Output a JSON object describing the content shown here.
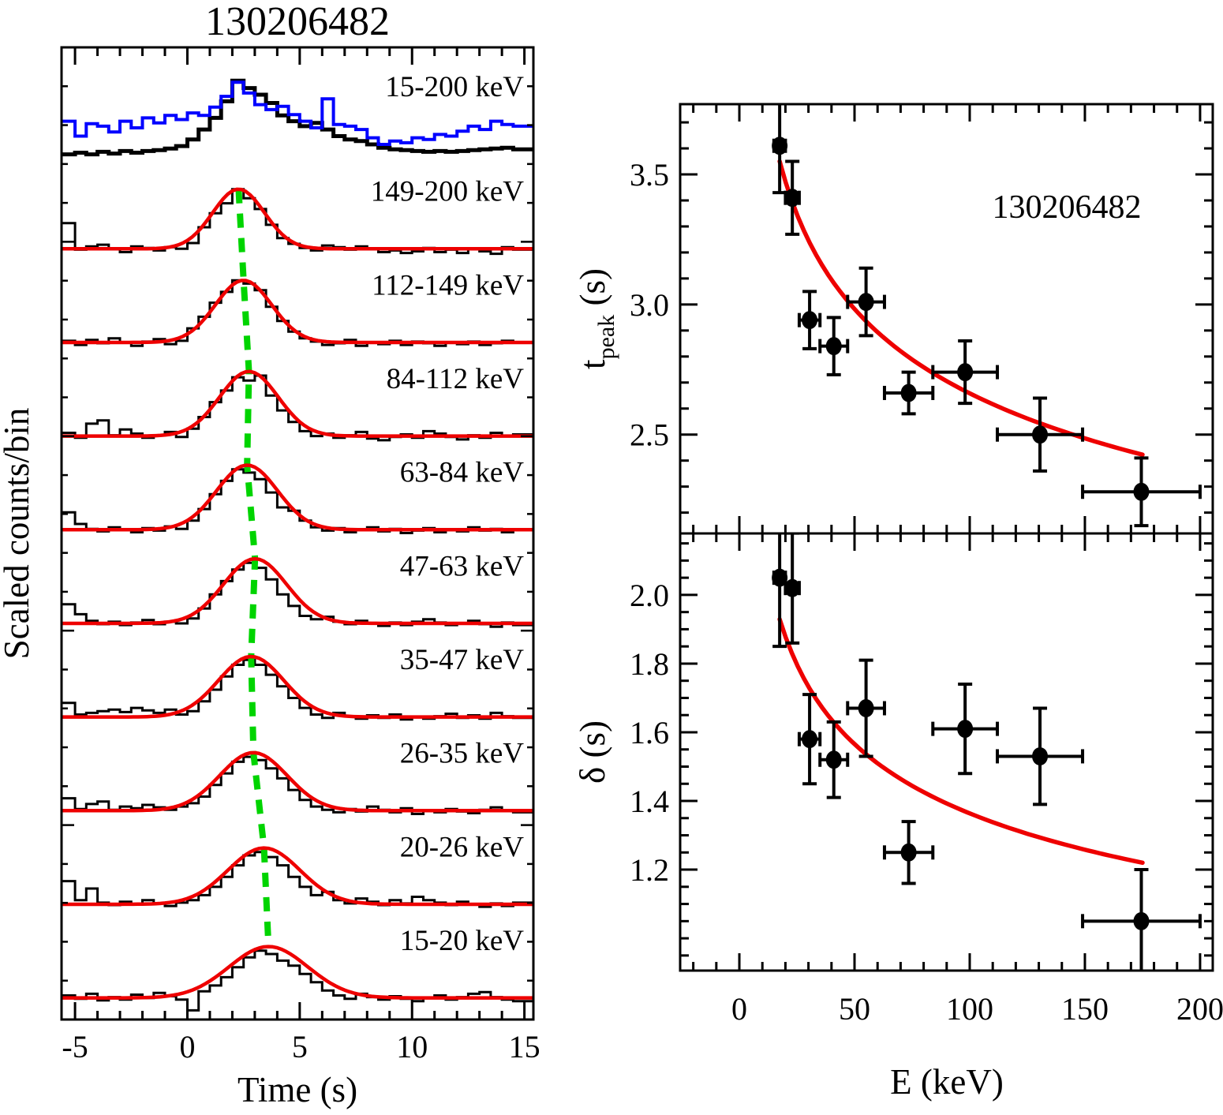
{
  "colors": {
    "histogram": "#000000",
    "secondary_histogram": "#0000ff",
    "fit_curve": "#ee0000",
    "peak_track": "#00d400",
    "frame": "#000000",
    "background": "#ffffff"
  },
  "chart_data": [
    {
      "id": "energy_resolved_light_curves",
      "type": "line",
      "title": "130206482",
      "xlabel": "Time (s)",
      "ylabel": "Scaled counts/bin",
      "xlim": [
        -5.6,
        15.4
      ],
      "x_ticks": [
        -5,
        0,
        5,
        10,
        15
      ],
      "x_tick_labels": [
        "-5",
        "0",
        "5",
        "10",
        "15"
      ],
      "x_minor_step": 1,
      "bin_start": -5.5,
      "bin_width": 0.5,
      "grid": false,
      "baseline_level": 0.07,
      "series": [
        {
          "label": "15-200 keV",
          "color": "#000000",
          "role": "total-black",
          "row": 0,
          "bins": [
            0.08,
            0.1,
            0.08,
            0.11,
            0.09,
            0.12,
            0.1,
            0.12,
            0.13,
            0.15,
            0.18,
            0.26,
            0.38,
            0.52,
            0.72,
            0.97,
            0.88,
            0.8,
            0.7,
            0.55,
            0.48,
            0.42,
            0.46,
            0.38,
            0.3,
            0.26,
            0.24,
            0.2,
            0.16,
            0.14,
            0.13,
            0.12,
            0.11,
            0.12,
            0.11,
            0.12,
            0.13,
            0.14,
            0.15,
            0.16,
            0.14
          ]
        },
        {
          "label": "15-200 keV",
          "color": "#0000ff",
          "role": "total-blue",
          "row": 0,
          "bins": [
            0.48,
            0.3,
            0.45,
            0.42,
            0.35,
            0.48,
            0.4,
            0.52,
            0.46,
            0.55,
            0.5,
            0.58,
            0.55,
            0.65,
            0.78,
            0.95,
            0.82,
            0.68,
            0.62,
            0.66,
            0.56,
            0.48,
            0.4,
            0.75,
            0.44,
            0.42,
            0.38,
            0.28,
            0.2,
            0.24,
            0.22,
            0.28,
            0.26,
            0.32,
            0.3,
            0.36,
            0.42,
            0.38,
            0.48,
            0.44,
            0.42
          ]
        },
        {
          "label": "149-200 keV",
          "color": "#000000",
          "row": 1,
          "fit": {
            "t_peak": 2.28,
            "sigma": 1.15,
            "amplitude": 0.72
          },
          "bins": [
            0.38,
            0.06,
            0.1,
            0.12,
            0.07,
            0.03,
            0.1,
            0.08,
            0.05,
            0.09,
            0.07,
            0.14,
            0.33,
            0.5,
            0.62,
            0.79,
            0.68,
            0.55,
            0.36,
            0.2,
            0.13,
            0.08,
            0.05,
            0.11,
            0.09,
            0.06,
            0.1,
            0.07,
            0.03,
            0.05,
            0.02,
            0.04,
            0.08,
            0.03,
            0.06,
            0.02,
            0.07,
            0.04,
            0.01,
            0.09,
            0.06
          ]
        },
        {
          "label": "112-149 keV",
          "color": "#000000",
          "row": 2,
          "fit": {
            "t_peak": 2.5,
            "sigma": 1.25,
            "amplitude": 0.75
          },
          "bins": [
            0.09,
            0.04,
            0.1,
            0.06,
            0.12,
            0.07,
            0.03,
            0.08,
            0.11,
            0.05,
            0.09,
            0.24,
            0.38,
            0.55,
            0.68,
            0.82,
            0.78,
            0.7,
            0.5,
            0.33,
            0.2,
            0.12,
            0.08,
            0.04,
            0.06,
            0.1,
            0.03,
            0.07,
            0.05,
            0.09,
            0.04,
            0.08,
            0.06,
            0.03,
            0.07,
            0.05,
            0.08,
            0.04,
            0.06,
            0.09,
            0.07
          ]
        },
        {
          "label": "84-112 keV",
          "color": "#000000",
          "row": 3,
          "fit": {
            "t_peak": 2.74,
            "sigma": 1.3,
            "amplitude": 0.78
          },
          "bins": [
            0.11,
            0.05,
            0.22,
            0.26,
            0.08,
            0.15,
            0.1,
            0.05,
            0.08,
            0.12,
            0.06,
            0.16,
            0.3,
            0.48,
            0.62,
            0.78,
            0.74,
            0.8,
            0.56,
            0.38,
            0.24,
            0.13,
            0.07,
            0.1,
            0.05,
            0.08,
            0.12,
            0.04,
            0.02,
            0.06,
            0.09,
            0.05,
            0.13,
            0.1,
            0.06,
            0.03,
            0.08,
            0.05,
            0.11,
            0.07,
            0.09
          ]
        },
        {
          "label": "63-84 keV",
          "color": "#000000",
          "row": 4,
          "fit": {
            "t_peak": 2.66,
            "sigma": 1.35,
            "amplitude": 0.78
          },
          "bins": [
            0.28,
            0.14,
            0.08,
            0.05,
            0.1,
            0.07,
            0.04,
            0.09,
            0.06,
            0.11,
            0.08,
            0.18,
            0.32,
            0.5,
            0.66,
            0.8,
            0.76,
            0.68,
            0.52,
            0.34,
            0.3,
            0.18,
            0.1,
            0.06,
            0.09,
            0.04,
            0.07,
            0.1,
            0.05,
            0.08,
            0.03,
            0.06,
            0.09,
            0.04,
            0.07,
            0.05,
            0.1,
            0.06,
            0.08,
            0.04,
            0.07
          ]
        },
        {
          "label": "47-63 keV",
          "color": "#000000",
          "row": 5,
          "fit": {
            "t_peak": 3.01,
            "sigma": 1.4,
            "amplitude": 0.78
          },
          "bins": [
            0.3,
            0.18,
            0.1,
            0.06,
            0.09,
            0.05,
            0.08,
            0.11,
            0.06,
            0.09,
            0.07,
            0.13,
            0.25,
            0.42,
            0.58,
            0.72,
            0.8,
            0.74,
            0.6,
            0.42,
            0.28,
            0.16,
            0.12,
            0.15,
            0.09,
            0.06,
            0.1,
            0.07,
            0.04,
            0.08,
            0.05,
            0.09,
            0.12,
            0.08,
            0.05,
            0.07,
            0.1,
            0.06,
            0.03,
            0.08,
            0.05
          ]
        },
        {
          "label": "35-47 keV",
          "color": "#000000",
          "row": 6,
          "fit": {
            "t_peak": 2.84,
            "sigma": 1.45,
            "amplitude": 0.73
          },
          "bins": [
            0.24,
            0.1,
            0.12,
            0.14,
            0.16,
            0.13,
            0.18,
            0.15,
            0.12,
            0.16,
            0.1,
            0.14,
            0.26,
            0.4,
            0.56,
            0.7,
            0.76,
            0.7,
            0.58,
            0.44,
            0.3,
            0.18,
            0.1,
            0.06,
            0.12,
            0.08,
            0.05,
            0.09,
            0.06,
            0.1,
            0.04,
            0.07,
            0.05,
            0.08,
            0.11,
            0.06,
            0.09,
            0.05,
            0.12,
            0.08,
            0.06
          ]
        },
        {
          "label": "26-35 keV",
          "color": "#000000",
          "row": 7,
          "fit": {
            "t_peak": 2.94,
            "sigma": 1.5,
            "amplitude": 0.7
          },
          "bins": [
            0.22,
            0.09,
            0.15,
            0.18,
            0.08,
            0.12,
            0.1,
            0.14,
            0.11,
            0.08,
            0.12,
            0.16,
            0.24,
            0.38,
            0.52,
            0.66,
            0.72,
            0.68,
            0.58,
            0.46,
            0.32,
            0.2,
            0.12,
            0.08,
            0.05,
            0.09,
            0.06,
            0.12,
            0.08,
            0.05,
            0.1,
            0.03,
            0.07,
            0.05,
            0.09,
            0.06,
            0.04,
            0.08,
            0.11,
            0.07,
            0.05
          ]
        },
        {
          "label": "20-26 keV",
          "color": "#000000",
          "row": 8,
          "fit": {
            "t_peak": 3.41,
            "sigma": 1.6,
            "amplitude": 0.68
          },
          "bins": [
            0.35,
            0.12,
            0.26,
            0.09,
            0.06,
            0.1,
            0.07,
            0.12,
            0.08,
            0.05,
            0.09,
            0.12,
            0.18,
            0.28,
            0.4,
            0.54,
            0.66,
            0.7,
            0.64,
            0.54,
            0.4,
            0.28,
            0.18,
            0.22,
            0.12,
            0.08,
            0.14,
            0.1,
            0.06,
            0.12,
            0.08,
            0.16,
            0.12,
            0.09,
            0.06,
            0.1,
            0.07,
            0.04,
            0.08,
            0.05,
            0.09
          ]
        },
        {
          "label": "15-20 keV",
          "color": "#000000",
          "row": 9,
          "fit": {
            "t_peak": 3.61,
            "sigma": 1.75,
            "amplitude": 0.62
          },
          "bins": [
            0.1,
            0.06,
            0.12,
            0.04,
            0.08,
            0.05,
            0.11,
            0.07,
            0.13,
            0.09,
            0.05,
            -0.08,
            0.15,
            0.22,
            0.32,
            0.44,
            0.56,
            0.64,
            0.6,
            0.52,
            0.46,
            0.36,
            0.26,
            0.16,
            0.1,
            0.06,
            0.12,
            0.08,
            0.05,
            0.09,
            0.06,
            0.03,
            0.07,
            0.1,
            0.05,
            0.08,
            0.12,
            0.14,
            0.08,
            0.05,
            0.03
          ]
        }
      ],
      "peak_track": {
        "color": "#00d400",
        "style": "dashed",
        "points_t": [
          2.28,
          2.5,
          2.74,
          2.66,
          3.01,
          2.84,
          2.94,
          3.41,
          3.61
        ]
      }
    },
    {
      "id": "t_peak_vs_energy",
      "type": "scatter",
      "annotation": "130206482",
      "xlabel": "E (keV)",
      "ylabel_main": "t",
      "ylabel_sub": "peak",
      "ylabel_unit": " (s)",
      "xlim": [
        -25.7,
        205.5
      ],
      "ylim": [
        2.12,
        3.77
      ],
      "x_ticks": [
        0,
        50,
        100,
        150,
        200
      ],
      "x_tick_labels": [
        "0",
        "50",
        "100",
        "150",
        "200"
      ],
      "x_minor_step": 10,
      "y_ticks": [
        2.5,
        3.0,
        3.5
      ],
      "y_tick_labels": [
        "2.5",
        "3.0",
        "3.5"
      ],
      "y_minor_step": 0.1,
      "grid": false,
      "legend": "none",
      "points": [
        {
          "E": 17.5,
          "E_err": 2.5,
          "y": 3.61,
          "y_err": 0.18
        },
        {
          "E": 23.0,
          "E_err": 3.0,
          "y": 3.41,
          "y_err": 0.14
        },
        {
          "E": 30.5,
          "E_err": 4.5,
          "y": 2.94,
          "y_err": 0.11
        },
        {
          "E": 41.0,
          "E_err": 6.0,
          "y": 2.84,
          "y_err": 0.11
        },
        {
          "E": 55.0,
          "E_err": 8.0,
          "y": 3.01,
          "y_err": 0.13
        },
        {
          "E": 73.5,
          "E_err": 10.5,
          "y": 2.66,
          "y_err": 0.08
        },
        {
          "E": 98.0,
          "E_err": 14.0,
          "y": 2.74,
          "y_err": 0.12
        },
        {
          "E": 130.5,
          "E_err": 18.5,
          "y": 2.5,
          "y_err": 0.14
        },
        {
          "E": 174.5,
          "E_err": 25.5,
          "y": 2.28,
          "y_err": 0.13
        }
      ],
      "fit": {
        "type": "power-law",
        "norm": 5.71,
        "index": -0.166,
        "E_min": 17.5,
        "E_max": 175
      }
    },
    {
      "id": "delta_vs_energy",
      "type": "scatter",
      "xlabel": "E (keV)",
      "ylabel": "δ (s)",
      "xlim": [
        -25.7,
        205.5
      ],
      "ylim": [
        0.906,
        2.179
      ],
      "x_ticks": [
        0,
        50,
        100,
        150,
        200
      ],
      "x_tick_labels": [
        "0",
        "50",
        "100",
        "150",
        "200"
      ],
      "x_minor_step": 10,
      "y_ticks": [
        1.2,
        1.4,
        1.6,
        1.8,
        2.0
      ],
      "y_tick_labels": [
        "1.2",
        "1.4",
        "1.6",
        "1.8",
        "2.0"
      ],
      "y_minor_step": 0.05,
      "grid": false,
      "legend": "none",
      "points": [
        {
          "E": 17.5,
          "E_err": 2.5,
          "y": 2.05,
          "y_err": 0.2
        },
        {
          "E": 23.0,
          "E_err": 3.0,
          "y": 2.02,
          "y_err": 0.16
        },
        {
          "E": 30.5,
          "E_err": 4.5,
          "y": 1.58,
          "y_err": 0.13
        },
        {
          "E": 41.0,
          "E_err": 6.0,
          "y": 1.52,
          "y_err": 0.11
        },
        {
          "E": 55.0,
          "E_err": 8.0,
          "y": 1.67,
          "y_err": 0.14
        },
        {
          "E": 73.5,
          "E_err": 10.5,
          "y": 1.25,
          "y_err": 0.09
        },
        {
          "E": 98.0,
          "E_err": 14.0,
          "y": 1.61,
          "y_err": 0.13
        },
        {
          "E": 130.5,
          "E_err": 18.5,
          "y": 1.53,
          "y_err": 0.14
        },
        {
          "E": 174.5,
          "E_err": 25.5,
          "y": 1.05,
          "y_err": 0.15
        }
      ],
      "fit": {
        "type": "power-law",
        "norm": 3.41,
        "index": -0.199,
        "E_min": 17.5,
        "E_max": 175
      }
    }
  ]
}
